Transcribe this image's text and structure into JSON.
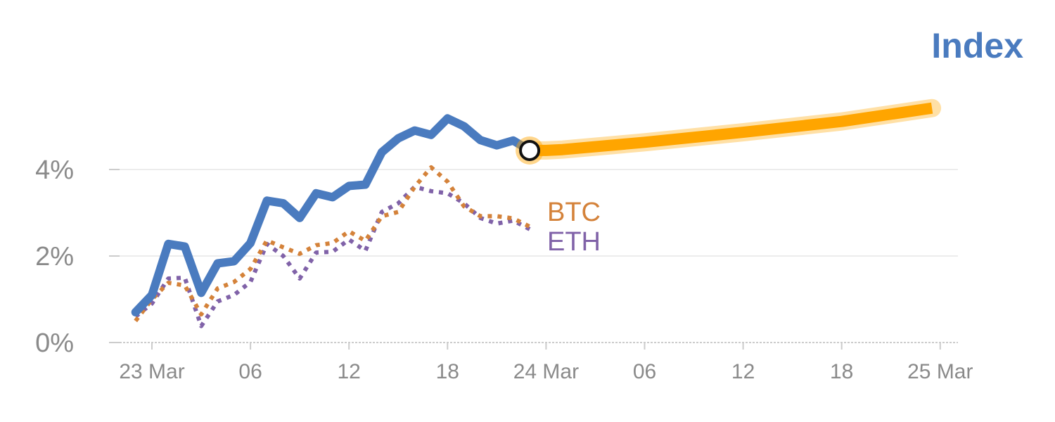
{
  "chart_data": {
    "type": "line",
    "title": "Index",
    "xlabel": "",
    "ylabel": "",
    "ylim": [
      0,
      5.5
    ],
    "x_ticks": [
      {
        "t": 0,
        "label": "23 Mar"
      },
      {
        "t": 6,
        "label": "06"
      },
      {
        "t": 12,
        "label": "12"
      },
      {
        "t": 18,
        "label": "18"
      },
      {
        "t": 24,
        "label": "24 Mar"
      },
      {
        "t": 30,
        "label": "06"
      },
      {
        "t": 36,
        "label": "12"
      },
      {
        "t": 42,
        "label": "18"
      },
      {
        "t": 48,
        "label": "25 Mar"
      }
    ],
    "y_ticks": [
      {
        "v": 0,
        "label": "0%"
      },
      {
        "v": 2,
        "label": "2%"
      },
      {
        "v": 4,
        "label": "4%"
      }
    ],
    "colors": {
      "index": "#4a7bbf",
      "btc": "#d4823a",
      "eth": "#8062a8",
      "forecast": "#ffa500",
      "grid": "#e6e6e6",
      "axis": "#cccccc"
    },
    "series": [
      {
        "name": "Index",
        "style": "solid",
        "x": [
          -1,
          0,
          1,
          2,
          3,
          4,
          5,
          6,
          7,
          8,
          9,
          10,
          11,
          12,
          13,
          14,
          15,
          16,
          17,
          18,
          19,
          20,
          21,
          22,
          23
        ],
        "values": [
          0.7,
          1.1,
          2.28,
          2.22,
          1.15,
          1.83,
          1.88,
          2.3,
          3.28,
          3.22,
          2.88,
          3.45,
          3.36,
          3.62,
          3.65,
          4.4,
          4.72,
          4.9,
          4.8,
          5.18,
          5.0,
          4.68,
          4.56,
          4.67,
          4.44
        ]
      },
      {
        "name": "BTC",
        "style": "dotted",
        "x": [
          -1,
          0,
          1,
          2,
          3,
          4,
          5,
          6,
          7,
          8,
          9,
          10,
          11,
          12,
          13,
          14,
          15,
          16,
          17,
          18,
          19,
          20,
          21,
          22,
          23
        ],
        "values": [
          0.5,
          1.0,
          1.38,
          1.32,
          0.65,
          1.25,
          1.4,
          1.7,
          2.36,
          2.2,
          2.05,
          2.25,
          2.3,
          2.57,
          2.35,
          2.92,
          3.02,
          3.6,
          4.05,
          3.72,
          3.15,
          2.92,
          2.92,
          2.87,
          2.68
        ]
      },
      {
        "name": "ETH",
        "style": "dotted",
        "x": [
          -1,
          0,
          1,
          2,
          3,
          4,
          5,
          6,
          7,
          8,
          9,
          10,
          11,
          12,
          13,
          14,
          15,
          16,
          17,
          18,
          19,
          20,
          21,
          22,
          23
        ],
        "values": [
          0.6,
          0.9,
          1.48,
          1.5,
          0.38,
          0.95,
          1.1,
          1.4,
          2.28,
          2.0,
          1.48,
          2.08,
          2.1,
          2.38,
          2.12,
          3.02,
          3.22,
          3.6,
          3.5,
          3.45,
          3.22,
          2.88,
          2.75,
          2.82,
          2.62
        ]
      },
      {
        "name": "",
        "style": "forecast",
        "x": [
          23,
          24,
          25,
          30,
          36,
          42,
          47.5
        ],
        "values": [
          4.44,
          4.44,
          4.46,
          4.63,
          4.86,
          5.11,
          5.42
        ]
      }
    ],
    "legend": "inline",
    "grid": true
  }
}
